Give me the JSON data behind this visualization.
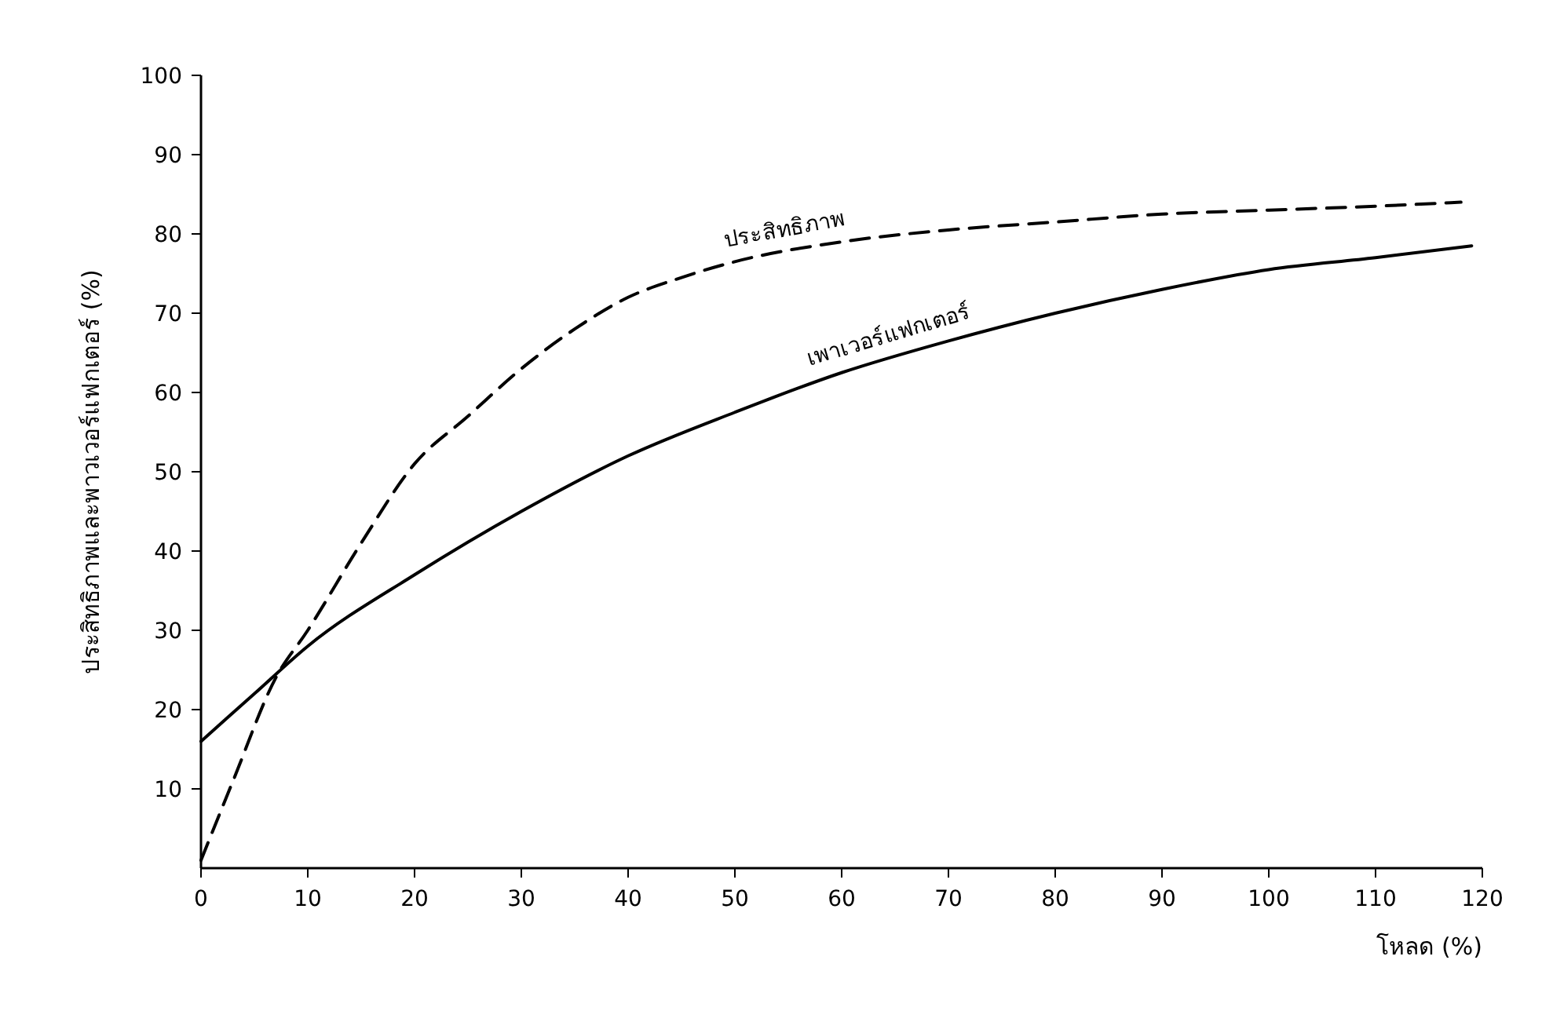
{
  "chart_data": {
    "type": "line",
    "xlabel": "โหลด (%)",
    "ylabel": "ประสิทธิภาพและพาวเวอร์แฟกเตอร์ (%)",
    "xlim": [
      0,
      120
    ],
    "ylim": [
      0,
      100
    ],
    "xticks": [
      0,
      10,
      20,
      30,
      40,
      50,
      60,
      70,
      80,
      90,
      100,
      110,
      120
    ],
    "yticks": [
      10,
      20,
      30,
      40,
      50,
      60,
      70,
      80,
      90,
      100
    ],
    "grid": false,
    "legend": false,
    "marker": "none",
    "series": [
      {
        "name": "ประสิทธิภาพ",
        "color": "#000000",
        "line_style": "dashed",
        "x": [
          0,
          3,
          7,
          10,
          15,
          20,
          25,
          30,
          35,
          40,
          45,
          50,
          60,
          70,
          80,
          90,
          100,
          110,
          118
        ],
        "values": [
          1,
          11,
          24,
          30,
          41,
          51,
          57,
          63,
          68,
          72,
          74.5,
          76.5,
          79,
          80.5,
          81.5,
          82.5,
          83,
          83.5,
          84
        ]
      },
      {
        "name": "เพาเวอร์แฟกเตอร์",
        "color": "#000000",
        "line_style": "solid",
        "x": [
          0,
          5,
          10,
          20,
          30,
          40,
          50,
          60,
          70,
          80,
          90,
          100,
          110,
          119
        ],
        "values": [
          16,
          22,
          28,
          37,
          45,
          52,
          57.5,
          62.5,
          66.5,
          70,
          73,
          75.5,
          77,
          78.5
        ]
      }
    ]
  }
}
